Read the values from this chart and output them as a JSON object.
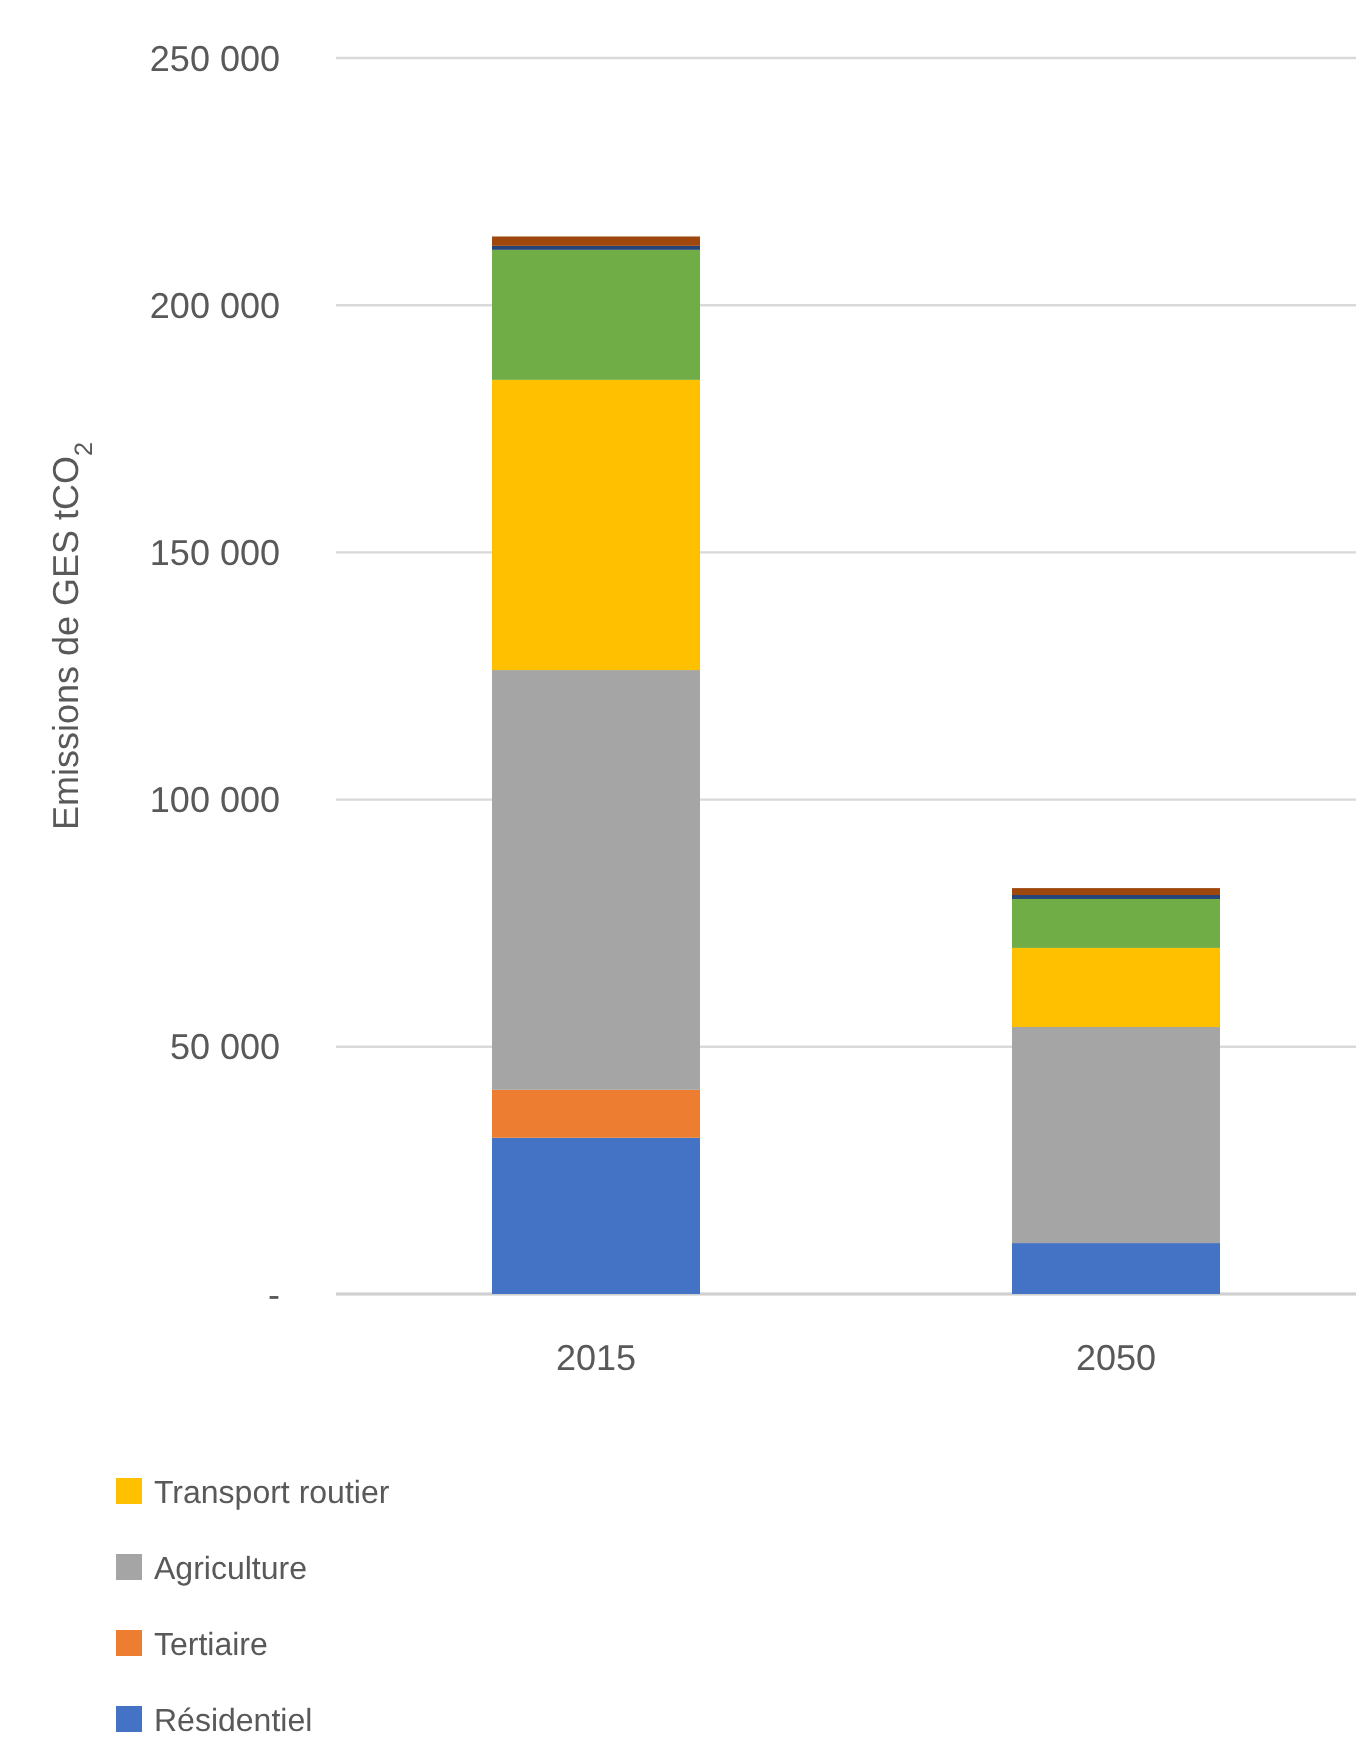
{
  "chart_data": {
    "type": "bar",
    "stacked": true,
    "ylabel": "Emissions de GES tCO$_{2}$",
    "categories": [
      "2015",
      "2050"
    ],
    "series": [
      {
        "name": "Résidentiel",
        "color": "#4472c4",
        "values": [
          31600,
          10300
        ]
      },
      {
        "name": "Tertiaire",
        "color": "#ed7d31",
        "values": [
          9700,
          0
        ]
      },
      {
        "name": "Agriculture",
        "color": "#a5a5a5",
        "values": [
          84900,
          43700
        ]
      },
      {
        "name": "Transport routier",
        "color": "#ffc000",
        "values": [
          58700,
          16000
        ]
      },
      {
        "color": "#70ad47",
        "values": [
          26300,
          9900
        ]
      },
      {
        "color": "#264478",
        "values": [
          800,
          800
        ]
      },
      {
        "color": "#9e480e",
        "values": [
          1900,
          1400
        ]
      }
    ],
    "ylim": [
      0,
      250000
    ],
    "yticks": [
      {
        "value": 0,
        "label": "-"
      },
      {
        "value": 50000,
        "label": "50 000"
      },
      {
        "value": 100000,
        "label": "100 000"
      },
      {
        "value": 150000,
        "label": "150 000"
      },
      {
        "value": 200000,
        "label": "200 000"
      },
      {
        "value": 250000,
        "label": "250 000"
      }
    ],
    "grid": true,
    "legend": "bottom"
  }
}
